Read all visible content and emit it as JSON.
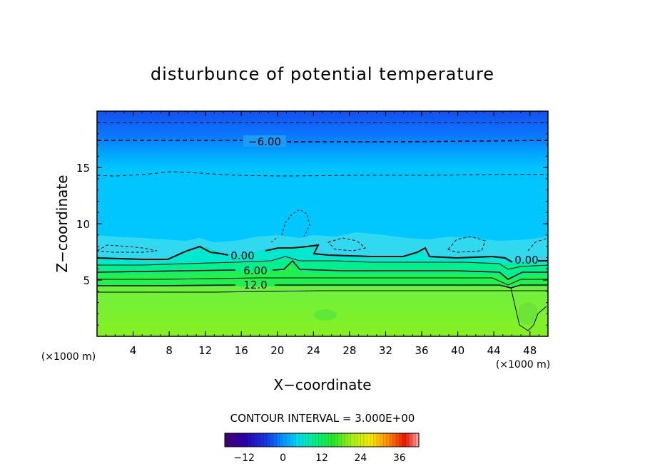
{
  "chart_data": {
    "type": "heatmap",
    "title": "disturbunce of potential temperature",
    "xlabel": "X−coordinate",
    "ylabel": "Z−coordinate",
    "x_unit_left": "(×1000 m)",
    "x_unit_right": "(×1000 m)",
    "xlim": [
      0,
      50
    ],
    "ylim": [
      0,
      20
    ],
    "x_ticks": [
      4,
      8,
      12,
      16,
      20,
      24,
      28,
      32,
      36,
      40,
      44,
      48
    ],
    "x_tick_labels": [
      "4",
      "8",
      "12",
      "16",
      "20",
      "24",
      "28",
      "32",
      "36",
      "40",
      "44",
      "48"
    ],
    "y_ticks": [
      5,
      10,
      15
    ],
    "y_tick_labels": [
      "5",
      "10",
      "15"
    ],
    "contour_labels": [
      {
        "text": "−6.00",
        "x": 18.5,
        "z": 17.3
      },
      {
        "text": "0.00",
        "x": 16.4,
        "z": 7.0
      },
      {
        "text": "0.00",
        "x": 47.8,
        "z": 6.6
      },
      {
        "text": "6.00",
        "x": 17.6,
        "z": 5.8
      },
      {
        "text": "12.0",
        "x": 17.6,
        "z": 4.6
      }
    ],
    "contour_interval_text": "CONTOUR INTERVAL = 3.000E+00",
    "colorbar": {
      "min": -18,
      "max": 42,
      "ticks": [
        -12,
        0,
        12,
        24,
        36
      ],
      "tick_labels": [
        "−12",
        "0",
        "12",
        "24",
        "36"
      ]
    },
    "colors": {
      "top": "#1a5cf0",
      "upper": "#00c8ff",
      "band_cyan": "#00e8d0",
      "band_green1": "#00f090",
      "band_green2": "#30ff40",
      "lower": "#80f020"
    }
  }
}
